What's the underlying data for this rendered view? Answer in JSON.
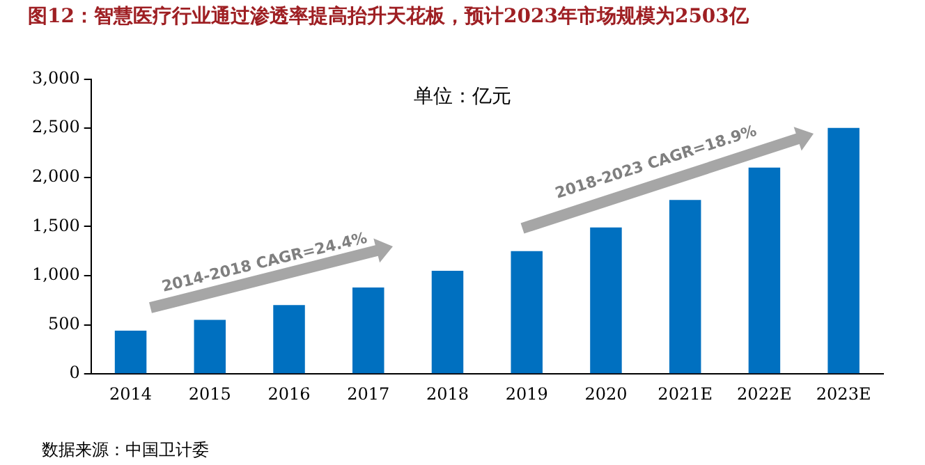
{
  "chart_data": {
    "type": "bar",
    "title": "图12：智慧医疗行业通过渗透率提高抬升天花板，预计2023年市场规模为2503亿",
    "categories": [
      "2014",
      "2015",
      "2016",
      "2017",
      "2018",
      "2019",
      "2020",
      "2021E",
      "2022E",
      "2023E"
    ],
    "values": [
      440,
      550,
      700,
      880,
      1050,
      1250,
      1490,
      1770,
      2100,
      2503
    ],
    "color": "#0070c0",
    "ylim": [
      0,
      3000
    ],
    "yticks": [
      {
        "value": 0,
        "label": "0"
      },
      {
        "value": 500,
        "label": "500"
      },
      {
        "value": 1000,
        "label": "1,000"
      },
      {
        "value": 1500,
        "label": "1,500"
      },
      {
        "value": 2000,
        "label": "2,000"
      },
      {
        "value": 2500,
        "label": "2,500"
      },
      {
        "value": 3000,
        "label": "3,000"
      }
    ],
    "grid": false,
    "annotations": [
      "单位：亿元",
      "2014-2018 CAGR=24.4%",
      "2018-2023 CAGR=18.9%",
      "数据来源：中国卫计委"
    ]
  }
}
